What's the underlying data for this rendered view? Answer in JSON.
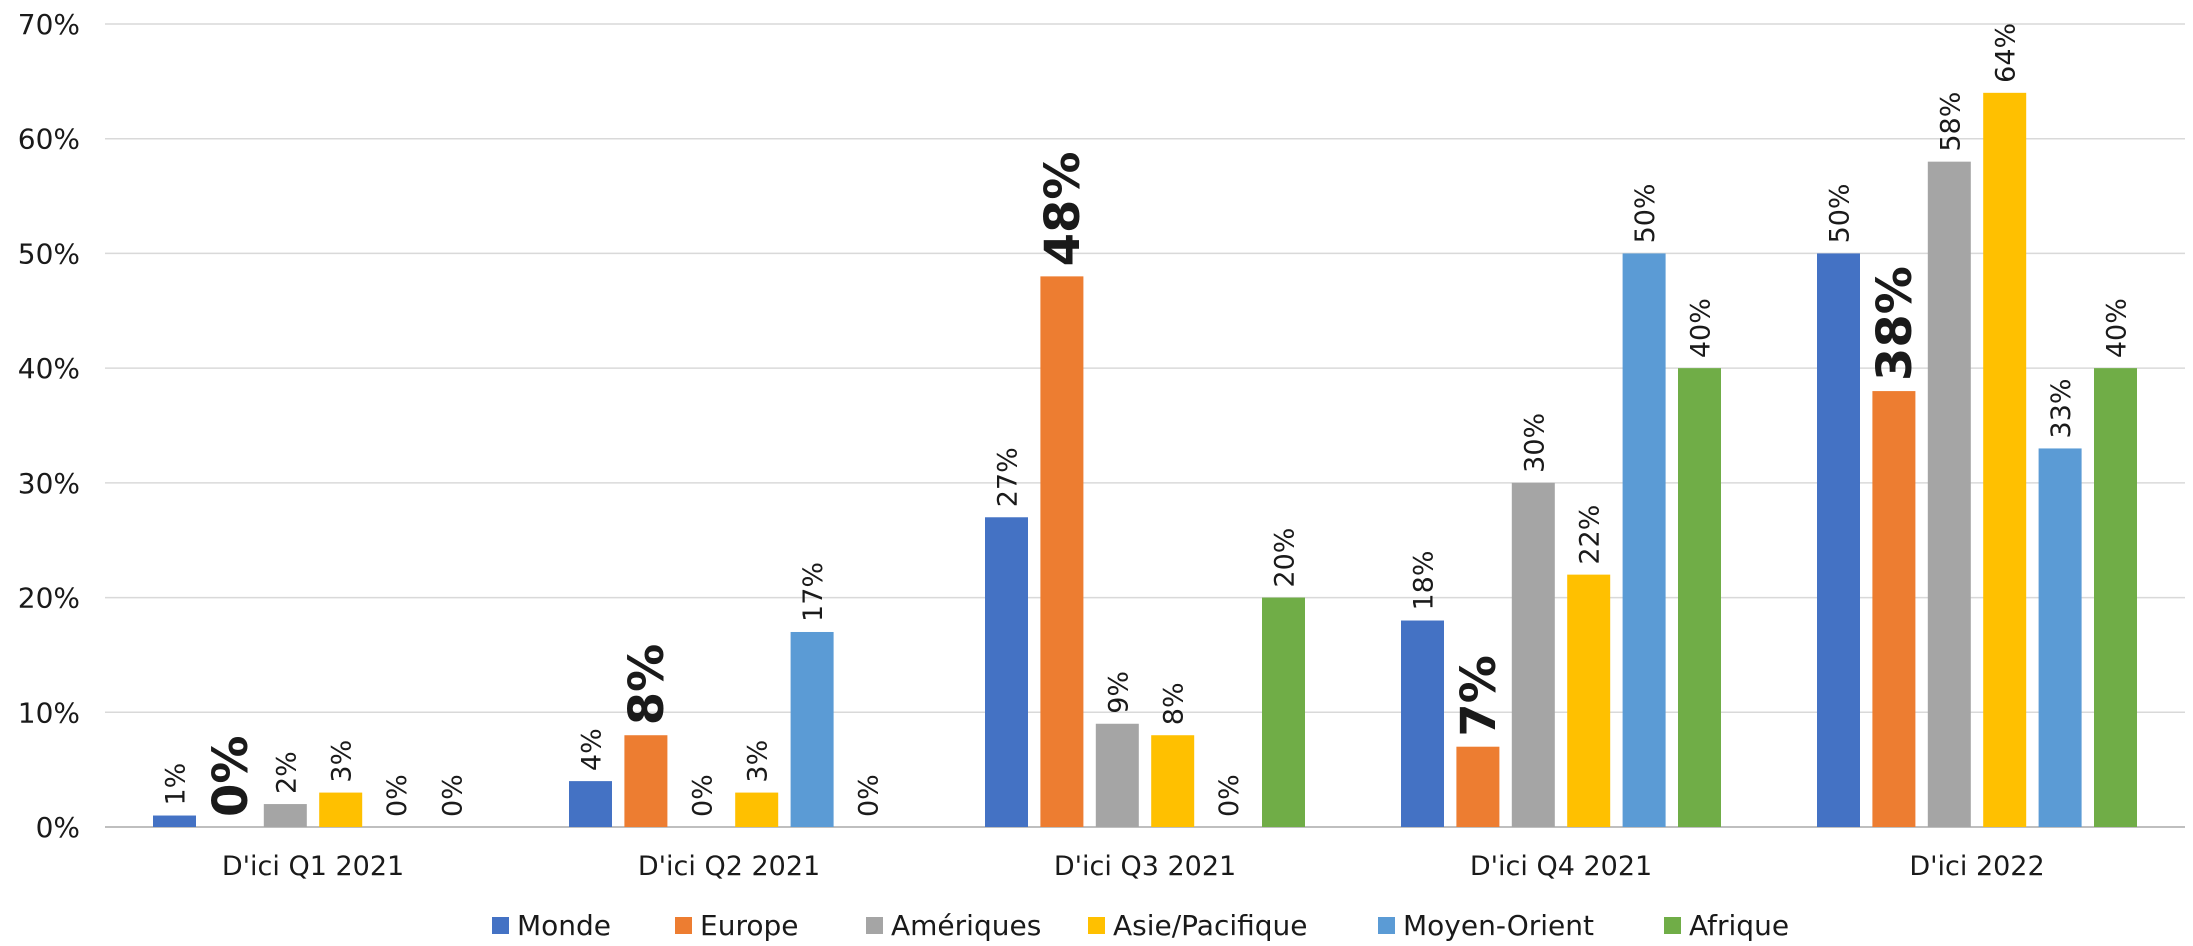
{
  "chart_data": {
    "type": "bar",
    "categories": [
      "D'ici Q1 2021",
      "D'ici Q2 2021",
      "D'ici Q3 2021",
      "D'ici Q4 2021",
      "D'ici 2022"
    ],
    "series": [
      {
        "name": "Monde",
        "color": "#4472C4",
        "values": [
          1,
          4,
          27,
          18,
          50
        ]
      },
      {
        "name": "Europe",
        "color": "#ED7D31",
        "values": [
          0,
          8,
          48,
          7,
          38
        ],
        "emphasized": true
      },
      {
        "name": "Amériques",
        "color": "#A5A5A5",
        "values": [
          2,
          0,
          9,
          30,
          58
        ]
      },
      {
        "name": "Asie/Pacifique",
        "color": "#FFC000",
        "values": [
          3,
          3,
          8,
          22,
          64
        ]
      },
      {
        "name": "Moyen-Orient",
        "color": "#5B9BD5",
        "values": [
          0,
          17,
          0,
          50,
          33
        ]
      },
      {
        "name": "Afrique",
        "color": "#70AD47",
        "values": [
          0,
          0,
          20,
          40,
          40
        ]
      }
    ],
    "value_labels": [
      [
        "1%",
        "4%",
        "27%",
        "18%",
        "50%"
      ],
      [
        "0%",
        "8%",
        "48%",
        "7%",
        "38%"
      ],
      [
        "2%",
        "0%",
        "9%",
        "30%",
        "58%"
      ],
      [
        "3%",
        "3%",
        "8%",
        "22%",
        "64%"
      ],
      [
        "0%",
        "17%",
        "0%",
        "50%",
        "33%"
      ],
      [
        "0%",
        "0%",
        "20%",
        "40%",
        "40%"
      ]
    ],
    "y_ticks": [
      "0%",
      "10%",
      "20%",
      "30%",
      "40%",
      "50%",
      "60%",
      "70%"
    ],
    "ylim": [
      0,
      70
    ],
    "title": "",
    "xlabel": "",
    "ylabel": "",
    "grid": true,
    "legend_position": "bottom"
  }
}
